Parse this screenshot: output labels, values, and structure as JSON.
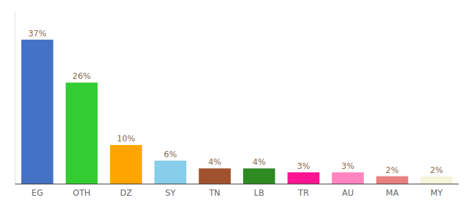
{
  "chart_data": {
    "type": "bar",
    "categories": [
      "EG",
      "OTH",
      "DZ",
      "SY",
      "TN",
      "LB",
      "TR",
      "AU",
      "MA",
      "MY"
    ],
    "values": [
      37,
      26,
      10,
      6,
      4,
      4,
      3,
      3,
      2,
      2
    ],
    "colors": [
      "#4472C4",
      "#33CC33",
      "#FFA500",
      "#87CEEB",
      "#A0522D",
      "#2E8B22",
      "#FF1493",
      "#FF85C0",
      "#E88080",
      "#F5F5DC"
    ],
    "value_labels": [
      "37%",
      "26%",
      "10%",
      "6%",
      "4%",
      "4%",
      "3%",
      "3%",
      "2%",
      "2%"
    ],
    "data_labels": true,
    "ylim": [
      0,
      44
    ],
    "grid": false,
    "tick_labels": "x"
  }
}
